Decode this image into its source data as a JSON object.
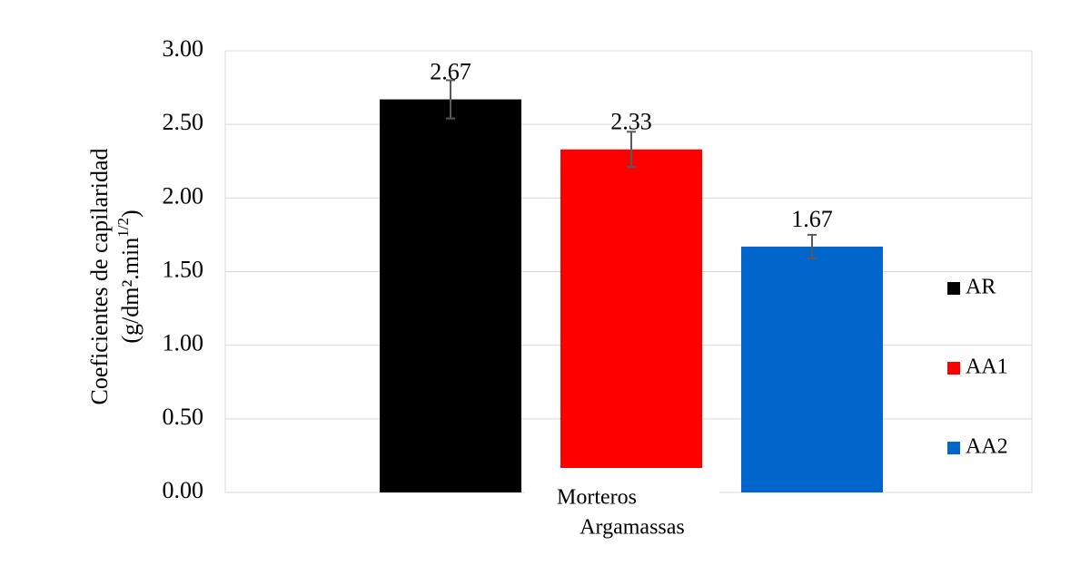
{
  "chart_data": {
    "type": "bar",
    "y_label": {
      "line1": "Coeficientes de capilaridad",
      "line2": "(g/dm².min",
      "line2_sup": "1/2",
      "line2_end": ")"
    },
    "categories": [
      "Morteros"
    ],
    "x_label": "Argamassas",
    "series": [
      {
        "name": "AR",
        "color": "#000000",
        "values": [
          2.67
        ],
        "errors": [
          0.13
        ]
      },
      {
        "name": "AA1",
        "color": "#ff0000",
        "values": [
          2.33
        ],
        "errors": [
          0.12
        ]
      },
      {
        "name": "AA2",
        "color": "#0066cc",
        "values": [
          1.67
        ],
        "errors": [
          0.08
        ]
      }
    ],
    "ylim": [
      0,
      3
    ],
    "yticks": [
      {
        "value": 0,
        "label": "0.00"
      },
      {
        "value": 0.5,
        "label": "0.50"
      },
      {
        "value": 1,
        "label": "1.00"
      },
      {
        "value": 1.5,
        "label": "1.50"
      },
      {
        "value": 2,
        "label": "2.00"
      },
      {
        "value": 2.5,
        "label": "2.50"
      },
      {
        "value": 3,
        "label": "3.00"
      }
    ],
    "grid": true,
    "legend": "right"
  }
}
